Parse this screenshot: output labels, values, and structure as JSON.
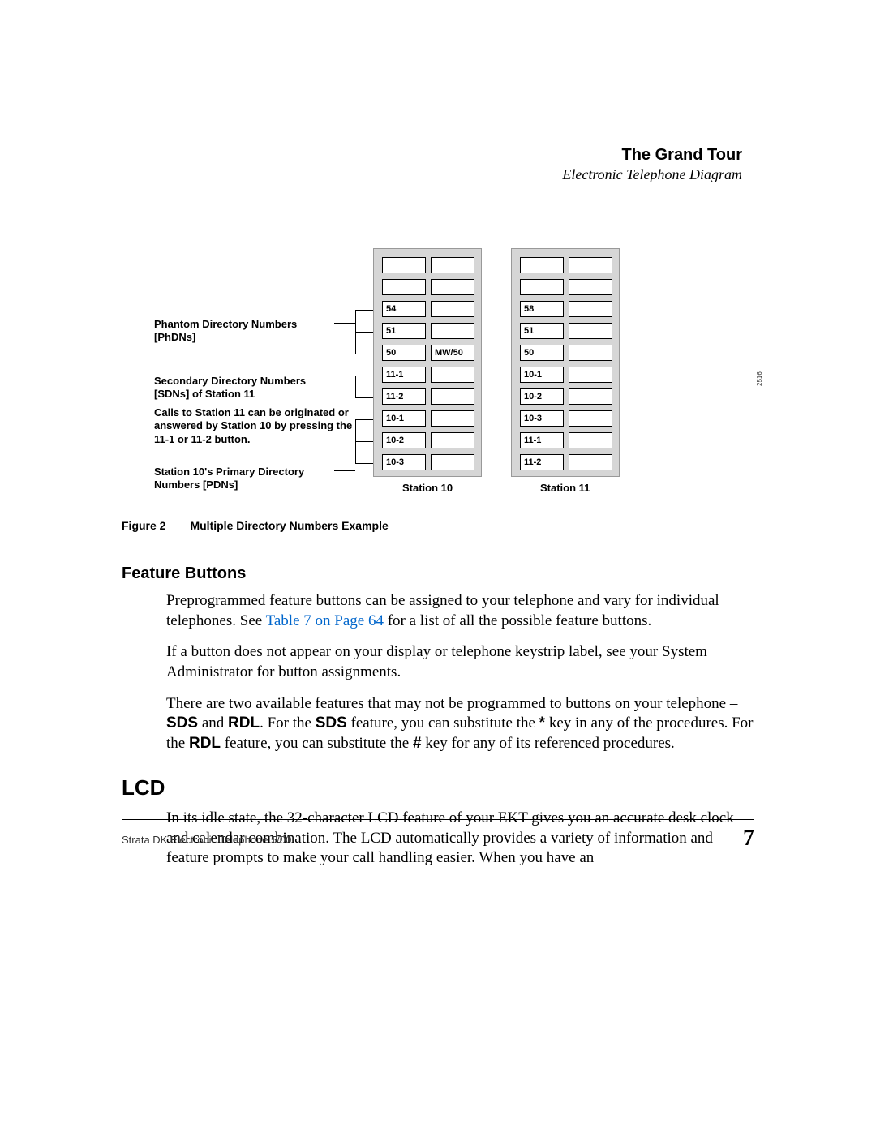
{
  "header": {
    "title": "The Grand Tour",
    "subtitle": "Electronic Telephone Diagram"
  },
  "diagram": {
    "fig_side": "2516",
    "labels": {
      "phdn": "Phantom Directory Numbers [PhDNs]",
      "sdn": "Secondary Directory Numbers [SDNs] of Station 11",
      "calls": "Calls to Station 11 can be originated or answered by Station 10 by pressing the 11-1 or 11-2 button.",
      "pdn": "Station 10's Primary Directory Numbers [PDNs]"
    },
    "station10": {
      "caption": "Station 10",
      "rows": [
        [
          "",
          ""
        ],
        [
          "",
          ""
        ],
        [
          "54",
          ""
        ],
        [
          "51",
          ""
        ],
        [
          "50",
          "MW/50"
        ],
        [
          "11-1",
          ""
        ],
        [
          "11-2",
          ""
        ],
        [
          "10-1",
          ""
        ],
        [
          "10-2",
          ""
        ],
        [
          "10-3",
          ""
        ]
      ]
    },
    "station11": {
      "caption": "Station 11",
      "rows": [
        [
          "",
          ""
        ],
        [
          "",
          ""
        ],
        [
          "58",
          ""
        ],
        [
          "51",
          ""
        ],
        [
          "50",
          ""
        ],
        [
          "10-1",
          ""
        ],
        [
          "10-2",
          ""
        ],
        [
          "10-3",
          ""
        ],
        [
          "11-1",
          ""
        ],
        [
          "11-2",
          ""
        ]
      ]
    }
  },
  "figure_caption": {
    "prefix": "Figure 2",
    "text": "Multiple Directory Numbers Example"
  },
  "feature_buttons": {
    "heading": "Feature Buttons",
    "p1_a": "Preprogrammed feature buttons can be assigned to your telephone and vary for individual telephones. See ",
    "p1_link": "Table 7 on Page 64",
    "p1_b": " for a list of all the possible feature buttons.",
    "p2": "If a button does not appear on your display or telephone keystrip label, see your System Administrator for button assignments.",
    "p3_a": "There are two available features that may not be programmed to buttons on your telephone – ",
    "sds": "SDS",
    "and": " and ",
    "rdl": "RDL",
    "p3_b": ". For the ",
    "p3_c": " feature, you can substitute the ",
    "star": "*",
    "p3_d": " key in any of the procedures. For the ",
    "p3_e": " feature, you can substitute the ",
    "hash": "#",
    "p3_f": " key for any of its referenced procedures."
  },
  "lcd": {
    "heading": "LCD",
    "p1": "In its idle state, the 32-character LCD feature of your EKT gives you an accurate desk clock and calendar combination. The LCD automatically provides a variety of information and feature prompts to make your call handling easier. When you have an"
  },
  "footer": {
    "left": "Strata DK Electronic Telephone  5/00",
    "page": "7"
  }
}
